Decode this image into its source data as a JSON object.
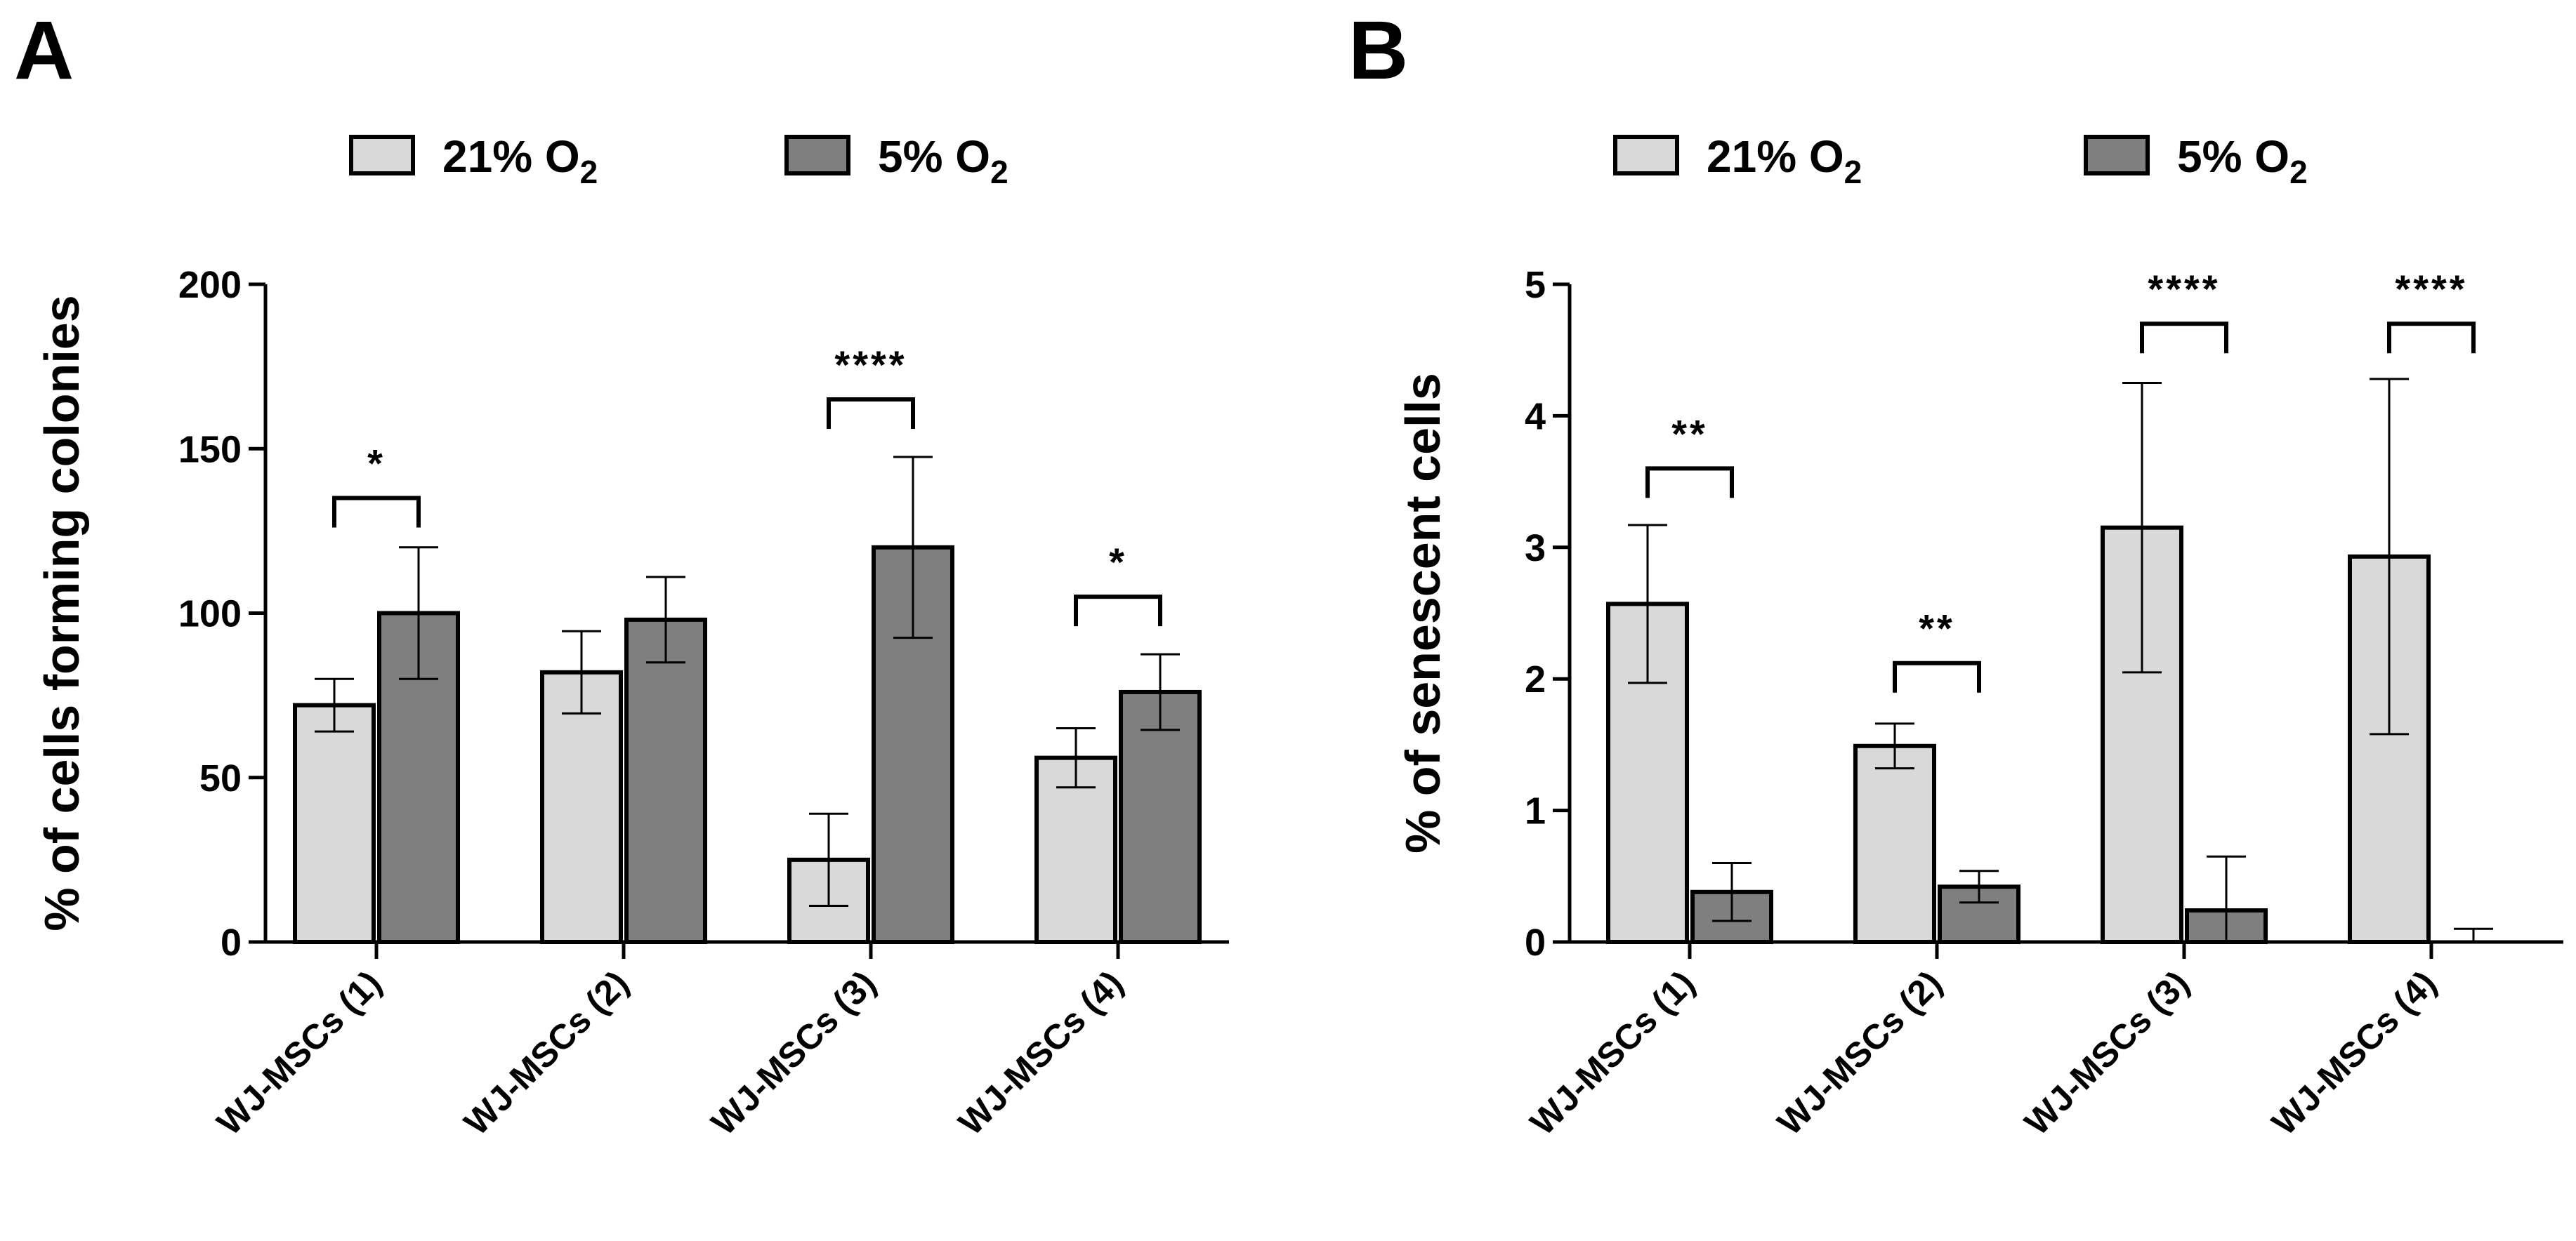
{
  "chart_data": [
    {
      "type": "bar",
      "panel": "A",
      "title": "",
      "ylabel": "% of cells forming colonies",
      "xlabel": "",
      "ylim": [
        0,
        200
      ],
      "yticks": [
        0,
        50,
        100,
        150,
        200
      ],
      "categories": [
        "WJ-MSCs (1)",
        "WJ-MSCs (2)",
        "WJ-MSCs (3)",
        "WJ-MSCs (4)"
      ],
      "series": [
        {
          "name": "21% O2",
          "color": "#d9d9d9",
          "values": [
            72,
            82,
            25,
            56
          ],
          "errors": [
            8,
            12.5,
            14,
            9
          ]
        },
        {
          "name": "5% O2",
          "color": "#7f7f7f",
          "values": [
            100,
            98,
            120,
            76
          ],
          "errors": [
            20,
            13,
            27.5,
            11.5
          ]
        }
      ],
      "significance": [
        {
          "category": 0,
          "label": "*",
          "level": 135
        },
        {
          "category": 2,
          "label": "****",
          "level": 165
        },
        {
          "category": 3,
          "label": "*",
          "level": 105
        }
      ]
    },
    {
      "type": "bar",
      "panel": "B",
      "title": "",
      "ylabel": "% of senescent cells",
      "xlabel": "",
      "ylim": [
        0,
        5
      ],
      "yticks": [
        0,
        1,
        2,
        3,
        4,
        5
      ],
      "categories": [
        "WJ-MSCs (1)",
        "WJ-MSCs (2)",
        "WJ-MSCs (3)",
        "WJ-MSCs (4)"
      ],
      "series": [
        {
          "name": "21% O2",
          "color": "#d9d9d9",
          "values": [
            2.57,
            1.49,
            3.15,
            2.93
          ],
          "errors": [
            0.6,
            0.17,
            1.1,
            1.35
          ]
        },
        {
          "name": "5% O2",
          "color": "#7f7f7f",
          "values": [
            0.38,
            0.42,
            0.24,
            0.0
          ],
          "errors": [
            0.22,
            0.12,
            0.41,
            0.1
          ]
        }
      ],
      "significance": [
        {
          "category": 0,
          "label": "**",
          "level": 3.6
        },
        {
          "category": 1,
          "label": "**",
          "level": 2.12
        },
        {
          "category": 2,
          "label": "****",
          "level": 4.7
        },
        {
          "category": 3,
          "label": "****",
          "level": 4.7
        }
      ]
    }
  ]
}
